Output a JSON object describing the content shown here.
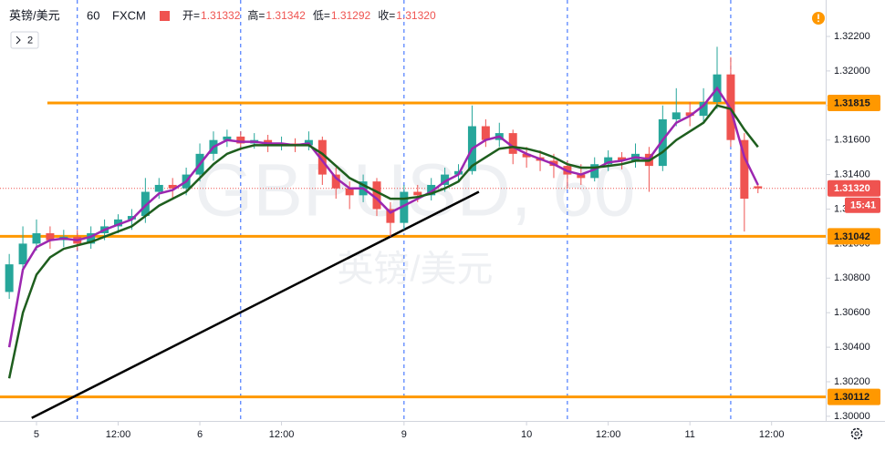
{
  "chart_data": {
    "type": "candlestick",
    "header": {
      "symbol": "英镑/美元",
      "interval": "60",
      "source": "FXCM",
      "ohlc": [
        {
          "label": "开=",
          "value": "1.31332"
        },
        {
          "label": "高=",
          "value": "1.31342"
        },
        {
          "label": "低=",
          "value": "1.31292"
        },
        {
          "label": "收=",
          "value": "1.31320"
        }
      ],
      "indicator_count": "2"
    },
    "watermark": {
      "symbol": "GBPUSD, 60",
      "name": "英镑/美元"
    },
    "x": [
      -4,
      -2,
      0,
      2,
      4,
      6,
      8,
      10,
      12,
      14,
      16,
      18,
      20,
      22,
      24,
      26,
      28,
      30,
      32,
      34,
      36,
      38,
      40,
      42,
      44,
      46,
      48,
      50,
      52,
      54,
      56,
      58,
      60,
      62,
      64,
      66,
      68,
      70,
      72,
      74,
      76,
      78,
      80,
      82,
      84,
      86,
      88,
      90,
      92,
      94,
      96,
      98,
      100,
      102,
      104,
      106
    ],
    "candles": [
      [
        1.3072,
        1.3094,
        1.3068,
        1.3088
      ],
      [
        1.3088,
        1.311,
        1.3084,
        1.31
      ],
      [
        1.31,
        1.3114,
        1.3096,
        1.3106
      ],
      [
        1.3106,
        1.311,
        1.3097,
        1.3102
      ],
      [
        1.3102,
        1.3108,
        1.3098,
        1.3104
      ],
      [
        1.3104,
        1.3108,
        1.3096,
        1.31
      ],
      [
        1.31,
        1.311,
        1.3097,
        1.3106
      ],
      [
        1.3106,
        1.3114,
        1.3102,
        1.311
      ],
      [
        1.311,
        1.3117,
        1.3106,
        1.3114
      ],
      [
        1.3114,
        1.312,
        1.3108,
        1.3116
      ],
      [
        1.3116,
        1.3138,
        1.3112,
        1.313
      ],
      [
        1.313,
        1.3138,
        1.3126,
        1.3134
      ],
      [
        1.3134,
        1.3138,
        1.3126,
        1.3132
      ],
      [
        1.3132,
        1.3144,
        1.3128,
        1.314
      ],
      [
        1.314,
        1.3158,
        1.3136,
        1.3152
      ],
      [
        1.3152,
        1.3165,
        1.3148,
        1.316
      ],
      [
        1.316,
        1.3166,
        1.3156,
        1.3162
      ],
      [
        1.3162,
        1.3165,
        1.3154,
        1.3158
      ],
      [
        1.3158,
        1.3164,
        1.3155,
        1.316
      ],
      [
        1.316,
        1.3163,
        1.3153,
        1.3157
      ],
      [
        1.3157,
        1.3162,
        1.3154,
        1.3158
      ],
      [
        1.3158,
        1.3161,
        1.3153,
        1.3157
      ],
      [
        1.3157,
        1.3165,
        1.3154,
        1.316
      ],
      [
        1.316,
        1.3162,
        1.3134,
        1.314
      ],
      [
        1.314,
        1.3144,
        1.3126,
        1.3132
      ],
      [
        1.3132,
        1.3136,
        1.312,
        1.3128
      ],
      [
        1.3128,
        1.314,
        1.3124,
        1.3136
      ],
      [
        1.3136,
        1.3138,
        1.3116,
        1.312
      ],
      [
        1.312,
        1.3124,
        1.3104,
        1.3112
      ],
      [
        1.3112,
        1.3134,
        1.3108,
        1.313
      ],
      [
        1.313,
        1.3134,
        1.3124,
        1.3128
      ],
      [
        1.3128,
        1.3138,
        1.3125,
        1.3134
      ],
      [
        1.3134,
        1.3144,
        1.313,
        1.314
      ],
      [
        1.314,
        1.3146,
        1.3136,
        1.3142
      ],
      [
        1.3142,
        1.318,
        1.314,
        1.3168
      ],
      [
        1.3168,
        1.3172,
        1.3156,
        1.316
      ],
      [
        1.316,
        1.317,
        1.3156,
        1.3164
      ],
      [
        1.3164,
        1.3166,
        1.3146,
        1.3152
      ],
      [
        1.3152,
        1.3156,
        1.3144,
        1.315
      ],
      [
        1.315,
        1.3154,
        1.3142,
        1.3148
      ],
      [
        1.3148,
        1.3152,
        1.3138,
        1.3145
      ],
      [
        1.3145,
        1.3148,
        1.3132,
        1.314
      ],
      [
        1.314,
        1.3146,
        1.3134,
        1.3138
      ],
      [
        1.3138,
        1.315,
        1.3136,
        1.3146
      ],
      [
        1.3146,
        1.3154,
        1.3142,
        1.315
      ],
      [
        1.315,
        1.3153,
        1.3143,
        1.3148
      ],
      [
        1.3148,
        1.3158,
        1.3144,
        1.3152
      ],
      [
        1.3152,
        1.3156,
        1.313,
        1.3145
      ],
      [
        1.3145,
        1.318,
        1.3142,
        1.3172
      ],
      [
        1.3172,
        1.319,
        1.3168,
        1.3176
      ],
      [
        1.3176,
        1.3182,
        1.3168,
        1.3174
      ],
      [
        1.3174,
        1.319,
        1.317,
        1.3182
      ],
      [
        1.3182,
        1.3214,
        1.3178,
        1.3198
      ],
      [
        1.3198,
        1.3208,
        1.3156,
        1.316
      ],
      [
        1.316,
        1.3164,
        1.3107,
        1.3126
      ],
      [
        1.31332,
        1.31342,
        1.31292,
        1.3132
      ]
    ],
    "up_color": "#26a69a",
    "down_color": "#ef5350",
    "series": [
      {
        "color": "#9c27b0",
        "values": [
          1.304,
          1.3085,
          1.3098,
          1.3102,
          1.3103,
          1.3102,
          1.3104,
          1.3108,
          1.3111,
          1.3114,
          1.3122,
          1.3129,
          1.3131,
          1.3136,
          1.3146,
          1.3156,
          1.316,
          1.3159,
          1.3159,
          1.3158,
          1.3158,
          1.3157,
          1.3158,
          1.3148,
          1.3138,
          1.3132,
          1.3132,
          1.3126,
          1.3118,
          1.3122,
          1.3126,
          1.313,
          1.3136,
          1.314,
          1.3155,
          1.316,
          1.3162,
          1.3156,
          1.3152,
          1.3149,
          1.3146,
          1.3142,
          1.314,
          1.3143,
          1.3147,
          1.3148,
          1.315,
          1.3149,
          1.316,
          1.317,
          1.3174,
          1.318,
          1.319,
          1.3178,
          1.315,
          1.3134
        ]
      },
      {
        "color": "#1e5e1e",
        "values": [
          1.3022,
          1.306,
          1.3082,
          1.3092,
          1.3097,
          1.3099,
          1.3101,
          1.3104,
          1.3107,
          1.311,
          1.3116,
          1.3122,
          1.3126,
          1.313,
          1.3138,
          1.3146,
          1.3152,
          1.3155,
          1.3157,
          1.3157,
          1.3157,
          1.3157,
          1.3157,
          1.3152,
          1.3145,
          1.3138,
          1.3134,
          1.313,
          1.3126,
          1.3126,
          1.3127,
          1.3129,
          1.3132,
          1.3136,
          1.3145,
          1.315,
          1.3155,
          1.3156,
          1.3155,
          1.3153,
          1.315,
          1.3146,
          1.3144,
          1.3144,
          1.3145,
          1.3146,
          1.3148,
          1.3148,
          1.3153,
          1.316,
          1.3165,
          1.317,
          1.318,
          1.3178,
          1.3166,
          1.3156
        ]
      }
    ],
    "levels": [
      {
        "value": 1.31815,
        "from": 1.6
      },
      {
        "value": 1.31042,
        "from": -5.36
      },
      {
        "value": 1.30112,
        "from": -5.36
      }
    ],
    "level_color": "#ff9800",
    "trendline": {
      "x": [
        -0.7,
        65
      ],
      "y": [
        1.2999,
        1.313
      ]
    },
    "session_lines": [
      6,
      30,
      54,
      78,
      102
    ],
    "last": {
      "value": 1.3132,
      "label": "1.31320",
      "time": "15:41"
    },
    "xlim": [
      -5.36,
      115.95
    ],
    "ylim": [
      1.29973,
      1.32411
    ],
    "xticks": [
      {
        "value": 0,
        "label": "5"
      },
      {
        "value": 12,
        "label": "12:00"
      },
      {
        "value": 24,
        "label": "6"
      },
      {
        "value": 36,
        "label": "12:00"
      },
      {
        "value": 54,
        "label": "9"
      },
      {
        "value": 72,
        "label": "10"
      },
      {
        "value": 84,
        "label": "12:00"
      },
      {
        "value": 96,
        "label": "11"
      },
      {
        "value": 108,
        "label": "12:00"
      }
    ],
    "yticks": [
      {
        "value": 1.3,
        "label": "1.30000"
      },
      {
        "value": 1.302,
        "label": "1.30200"
      },
      {
        "value": 1.304,
        "label": "1.30400"
      },
      {
        "value": 1.306,
        "label": "1.30600"
      },
      {
        "value": 1.308,
        "label": "1.30800"
      },
      {
        "value": 1.31,
        "label": "1.31000"
      },
      {
        "value": 1.312,
        "label": "1.31200"
      },
      {
        "value": 1.314,
        "label": "1.31400"
      },
      {
        "value": 1.316,
        "label": "1.31600"
      },
      {
        "value": 1.318,
        "label": "1.31800"
      },
      {
        "value": 1.32,
        "label": "1.32000"
      },
      {
        "value": 1.322,
        "label": "1.32200"
      }
    ]
  }
}
